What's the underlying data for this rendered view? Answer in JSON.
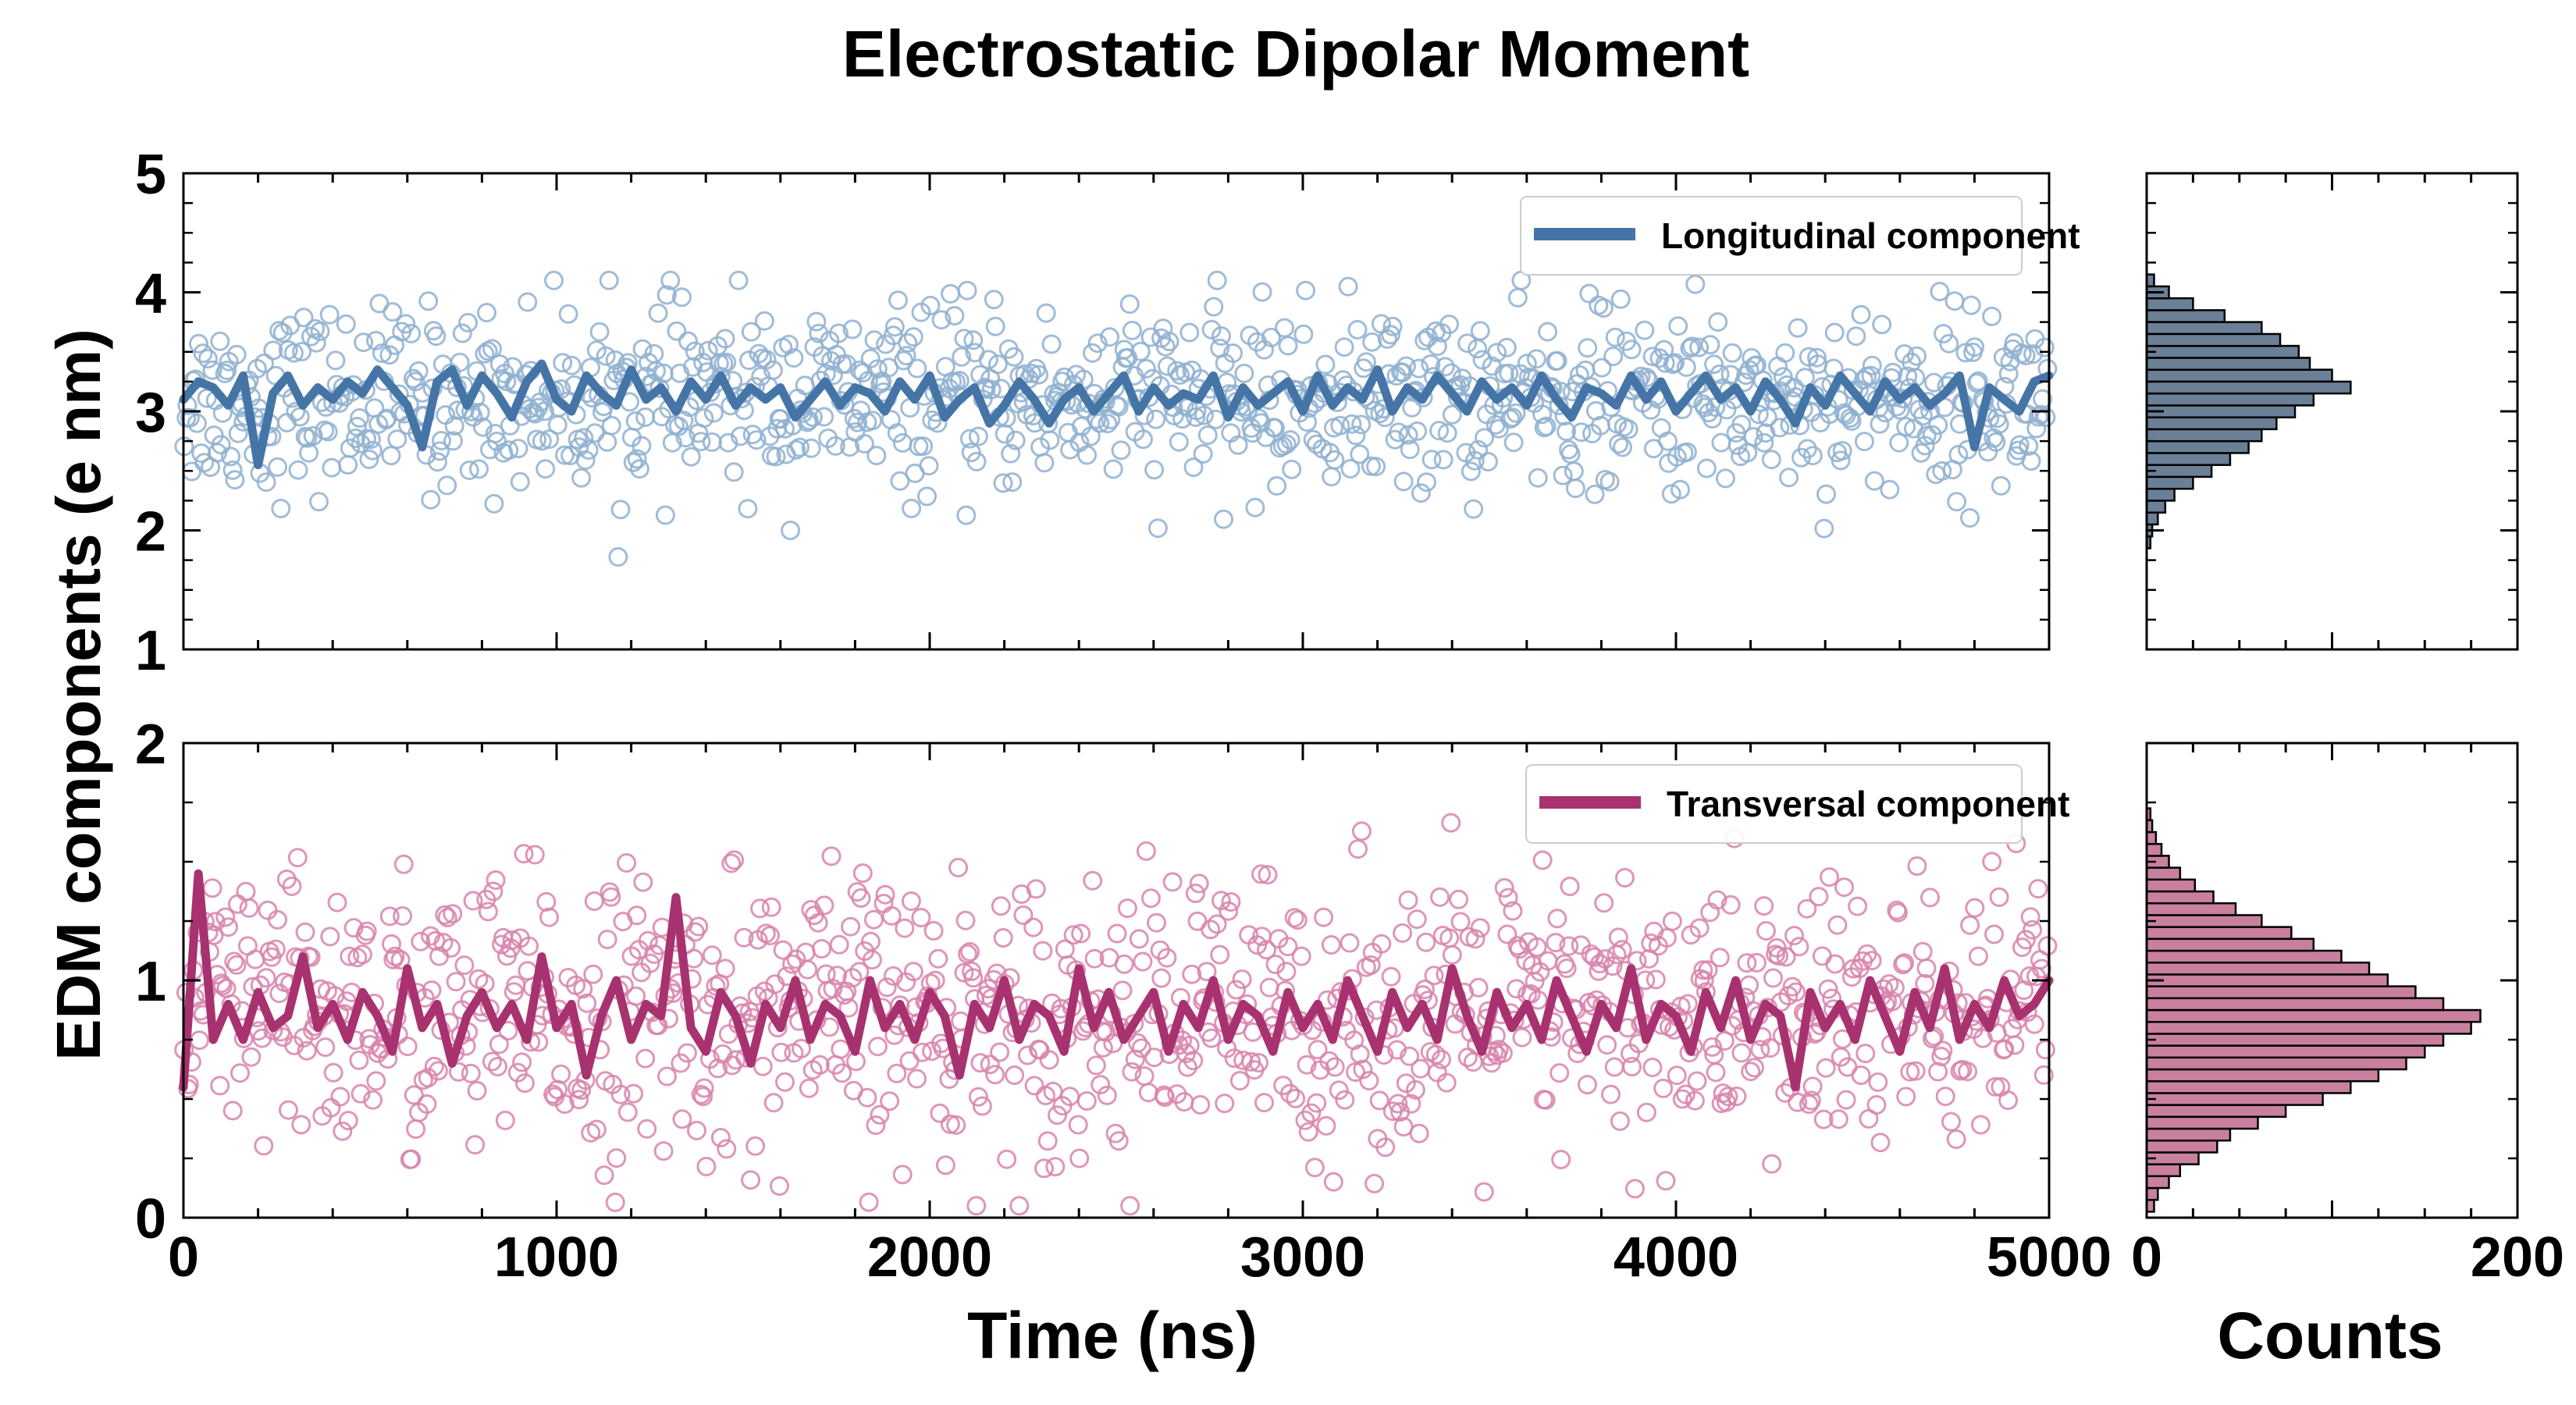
{
  "chart_data": {
    "type": "scatter",
    "title": "Electrostatic Dipolar Moment",
    "xlabel": "Time (ns)",
    "ylabel": "EDM components (e nm)",
    "hist_xlabel": "Counts",
    "xlim": [
      0,
      5000
    ],
    "xticks": [
      "0",
      "1000",
      "2000",
      "3000",
      "4000",
      "5000"
    ],
    "hist_xlim": [
      0,
      200
    ],
    "hist_xticks": [
      "0",
      "200"
    ],
    "panels": [
      {
        "name": "Longitudinal component",
        "legend": "Longitudinal component",
        "color": "#4575a6",
        "marker_color": "#8fb0d0",
        "hist_color": "#6b7f96",
        "ylim": [
          1,
          5
        ],
        "yticks": [
          "1",
          "2",
          "3",
          "4",
          "5"
        ],
        "raw_points_approx": {
          "count": 1000,
          "mean": 3.1,
          "std": 0.38,
          "min": 1.7,
          "max": 4.1
        },
        "running_mean_y": [
          3.1,
          3.25,
          3.2,
          3.05,
          3.3,
          2.55,
          3.15,
          3.3,
          3.05,
          3.2,
          3.1,
          3.25,
          3.15,
          3.35,
          3.2,
          3.05,
          2.7,
          3.25,
          3.35,
          3.05,
          3.3,
          3.15,
          2.95,
          3.25,
          3.4,
          3.1,
          3.0,
          3.3,
          3.15,
          3.05,
          3.35,
          3.1,
          3.2,
          3.0,
          3.25,
          3.1,
          3.3,
          3.05,
          3.2,
          3.1,
          3.2,
          2.95,
          3.1,
          3.25,
          3.05,
          3.2,
          3.15,
          3.0,
          3.25,
          3.1,
          3.3,
          2.95,
          3.1,
          3.2,
          2.9,
          3.05,
          3.25,
          3.1,
          2.9,
          3.1,
          3.2,
          3.0,
          3.15,
          3.3,
          3.0,
          3.2,
          3.05,
          3.15,
          3.1,
          3.3,
          2.95,
          3.2,
          3.05,
          3.15,
          3.25,
          3.0,
          3.3,
          3.05,
          3.2,
          3.1,
          3.35,
          3.0,
          3.2,
          3.1,
          3.3,
          3.15,
          3.0,
          3.25,
          3.1,
          3.2,
          3.05,
          3.3,
          3.1,
          2.95,
          3.2,
          3.15,
          3.05,
          3.3,
          3.1,
          3.25,
          3.0,
          3.15,
          3.3,
          3.1,
          3.2,
          3.0,
          3.25,
          3.1,
          2.9,
          3.2,
          3.05,
          3.3,
          3.15,
          3.0,
          3.25,
          3.1,
          3.2,
          3.05,
          3.15,
          3.3,
          2.7,
          3.2,
          3.1,
          3.0,
          3.25,
          3.3
        ],
        "histogram": {
          "bin_centers": [
            1.9,
            2.0,
            2.1,
            2.2,
            2.3,
            2.4,
            2.5,
            2.6,
            2.7,
            2.8,
            2.9,
            3.0,
            3.1,
            3.2,
            3.3,
            3.4,
            3.5,
            3.6,
            3.7,
            3.8,
            3.9,
            4.0,
            4.1
          ],
          "counts": [
            2,
            3,
            6,
            10,
            15,
            25,
            35,
            45,
            55,
            62,
            70,
            80,
            90,
            110,
            100,
            88,
            82,
            72,
            62,
            42,
            25,
            12,
            4
          ]
        }
      },
      {
        "name": "Transversal component",
        "legend": "Transversal component",
        "color": "#a83270",
        "marker_color": "#d884ad",
        "hist_color": "#c9809f",
        "ylim": [
          0,
          2
        ],
        "yticks": [
          "0",
          "1",
          "2"
        ],
        "raw_points_approx": {
          "count": 1000,
          "mean": 0.85,
          "std": 0.3,
          "min": 0.05,
          "max": 1.9
        },
        "running_mean_y": [
          0.55,
          1.45,
          0.75,
          0.9,
          0.75,
          0.95,
          0.8,
          0.85,
          1.1,
          0.8,
          0.9,
          0.75,
          0.95,
          0.85,
          0.7,
          1.05,
          0.8,
          0.9,
          0.65,
          0.85,
          0.95,
          0.8,
          0.9,
          0.75,
          1.1,
          0.8,
          0.9,
          0.6,
          0.85,
          1.0,
          0.75,
          0.9,
          0.85,
          1.35,
          0.8,
          0.7,
          0.95,
          0.85,
          0.65,
          0.9,
          0.8,
          1.0,
          0.75,
          0.9,
          0.85,
          0.7,
          1.0,
          0.8,
          0.9,
          0.75,
          0.95,
          0.85,
          0.6,
          0.9,
          0.8,
          1.0,
          0.75,
          0.9,
          0.85,
          0.7,
          1.05,
          0.8,
          0.95,
          0.75,
          0.85,
          0.95,
          0.7,
          0.9,
          0.8,
          1.0,
          0.75,
          0.9,
          0.85,
          0.7,
          0.95,
          0.8,
          0.9,
          0.75,
          1.0,
          0.85,
          0.7,
          0.95,
          0.8,
          0.9,
          0.75,
          1.05,
          0.85,
          0.7,
          0.95,
          0.8,
          0.9,
          0.75,
          1.0,
          0.85,
          0.7,
          0.9,
          0.8,
          1.05,
          0.75,
          0.9,
          0.85,
          0.7,
          0.95,
          0.8,
          1.0,
          0.75,
          0.9,
          0.85,
          0.55,
          0.95,
          0.8,
          0.9,
          0.75,
          1.0,
          0.85,
          0.7,
          0.95,
          0.8,
          1.05,
          0.75,
          0.9,
          0.8,
          1.0,
          0.85,
          0.9,
          1.0
        ],
        "histogram": {
          "bin_centers": [
            0.05,
            0.1,
            0.15,
            0.2,
            0.25,
            0.3,
            0.35,
            0.4,
            0.45,
            0.5,
            0.55,
            0.6,
            0.65,
            0.7,
            0.75,
            0.8,
            0.85,
            0.9,
            0.95,
            1.0,
            1.05,
            1.1,
            1.15,
            1.2,
            1.25,
            1.3,
            1.35,
            1.4,
            1.45,
            1.5,
            1.55,
            1.6,
            1.65,
            1.7
          ],
          "counts": [
            4,
            6,
            12,
            18,
            28,
            38,
            45,
            60,
            75,
            95,
            110,
            125,
            140,
            150,
            160,
            175,
            180,
            160,
            145,
            130,
            120,
            105,
            90,
            78,
            62,
            48,
            36,
            26,
            18,
            12,
            8,
            5,
            3,
            2
          ]
        }
      }
    ]
  }
}
